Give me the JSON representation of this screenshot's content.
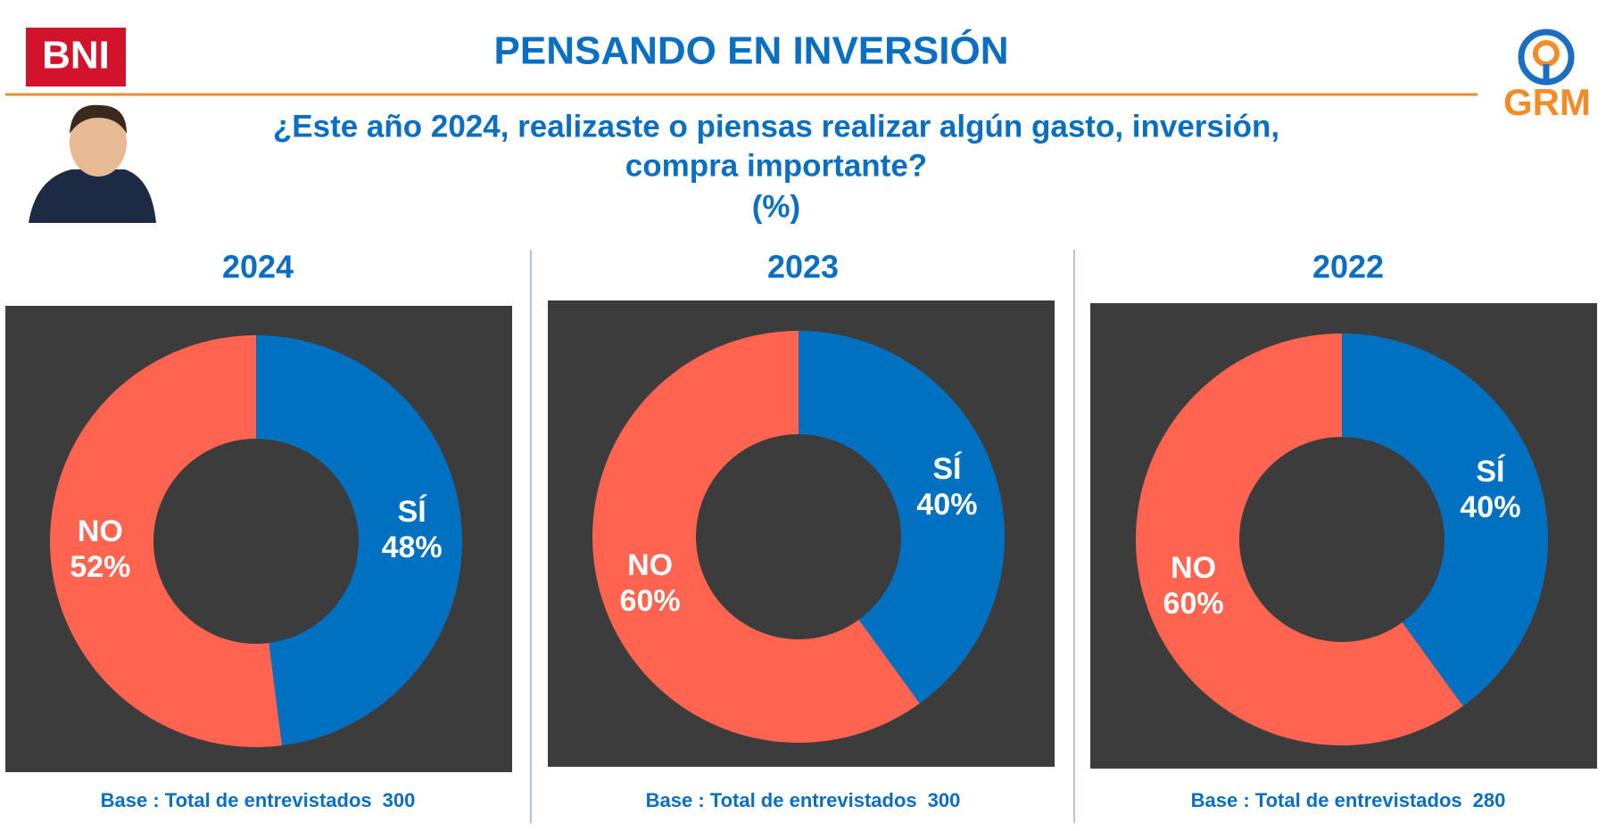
{
  "header": {
    "logo_left": "BNI",
    "title": "PENSANDO EN INVERSIÓN",
    "logo_right": "GRM",
    "question_lines": [
      "¿Este año 2024, realizaste o piensas realizar algún gasto, inversión,",
      "compra importante?"
    ],
    "unit": "(%)"
  },
  "chart_data": [
    {
      "type": "donut",
      "title": "2024",
      "categories": [
        "SÍ",
        "NO"
      ],
      "values": [
        48,
        52
      ],
      "value_labels": [
        "48%",
        "52%"
      ],
      "colors": [
        "#0070c0",
        "#fe6450"
      ],
      "base_label": "Base : Total de entrevistados",
      "base": 300
    },
    {
      "type": "donut",
      "title": "2023",
      "categories": [
        "SÍ",
        "NO"
      ],
      "values": [
        40,
        60
      ],
      "value_labels": [
        "40%",
        "60%"
      ],
      "colors": [
        "#0070c0",
        "#fe6450"
      ],
      "base_label": "Base : Total de entrevistados",
      "base": 300
    },
    {
      "type": "donut",
      "title": "2022",
      "categories": [
        "SÍ",
        "NO"
      ],
      "values": [
        40,
        60
      ],
      "value_labels": [
        "40%",
        "60%"
      ],
      "colors": [
        "#0070c0",
        "#fe6450"
      ],
      "base_label": "Base : Total de entrevistados",
      "base": 280
    }
  ]
}
